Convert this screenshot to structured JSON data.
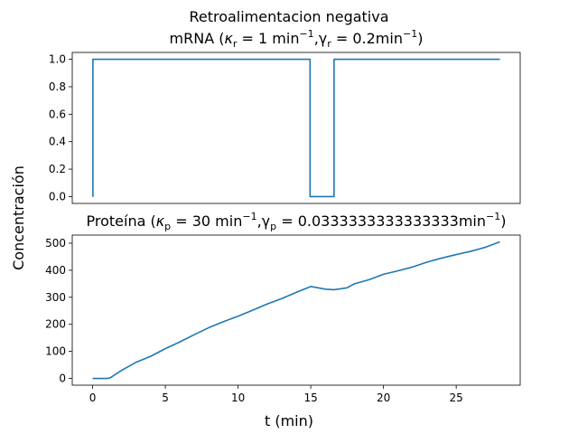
{
  "figure": {
    "suptitle": "Retroalimentacion negativa",
    "ylabel": "Concentración",
    "xlabel": "t (min)"
  },
  "chart_data": [
    {
      "type": "line",
      "title": "mRNA (κ_r = 1 min⁻¹, γ_r = 0.2 min⁻¹)",
      "title_parts": {
        "name": "mRNA (",
        "kappa": "κ",
        "kappa_sub": "r",
        "kappa_val": " = 1 min",
        "kappa_exp": "−1",
        "gamma": ",γ",
        "gamma_sub": "r",
        "gamma_val": " = 0.2min",
        "gamma_exp": "−1",
        "close": ")"
      },
      "xlim": [
        -1.4,
        29.4
      ],
      "ylim": [
        -0.05,
        1.05
      ],
      "yticks": [
        0.0,
        0.2,
        0.4,
        0.6,
        0.8,
        1.0
      ],
      "ytick_labels": [
        "0.0",
        "0.2",
        "0.4",
        "0.6",
        "0.8",
        "1.0"
      ],
      "xticks_visible": false,
      "series": [
        {
          "color": "#1f77b4",
          "step": true,
          "x": [
            0.0,
            0.02,
            14.95,
            16.6,
            28.0
          ],
          "y": [
            0.0,
            1.0,
            0.0,
            1.0,
            1.0
          ]
        }
      ]
    },
    {
      "type": "line",
      "title": "Proteína (κ_p = 30 min⁻¹, γ_p = 0.0333333333333333 min⁻¹)",
      "title_parts": {
        "name": "Proteína (",
        "kappa": "κ",
        "kappa_sub": "p",
        "kappa_val": " = 30 min",
        "kappa_exp": "−1",
        "gamma": ",γ",
        "gamma_sub": "p",
        "gamma_val": " = 0.0333333333333333min",
        "gamma_exp": "−1",
        "close": ")"
      },
      "xlim": [
        -1.4,
        29.4
      ],
      "ylim": [
        -25,
        530
      ],
      "yticks": [
        0,
        100,
        200,
        300,
        400,
        500
      ],
      "ytick_labels": [
        "0",
        "100",
        "200",
        "300",
        "400",
        "500"
      ],
      "xticks": [
        0,
        5,
        10,
        15,
        20,
        25
      ],
      "xtick_labels": [
        "0",
        "5",
        "10",
        "15",
        "20",
        "25"
      ],
      "series": [
        {
          "color": "#1f77b4",
          "step": false,
          "x": [
            0,
            1,
            1.2,
            2,
            3,
            4,
            5,
            6,
            7,
            8,
            9,
            10,
            11,
            12,
            13,
            14,
            15,
            16,
            16.6,
            17.5,
            18,
            19,
            20,
            21,
            22,
            23,
            24,
            25,
            26,
            27,
            28
          ],
          "y": [
            0,
            0,
            2,
            30,
            60,
            82,
            110,
            135,
            162,
            188,
            210,
            230,
            252,
            275,
            295,
            318,
            340,
            330,
            328,
            335,
            350,
            365,
            385,
            398,
            412,
            430,
            445,
            458,
            470,
            485,
            505
          ]
        }
      ]
    }
  ]
}
